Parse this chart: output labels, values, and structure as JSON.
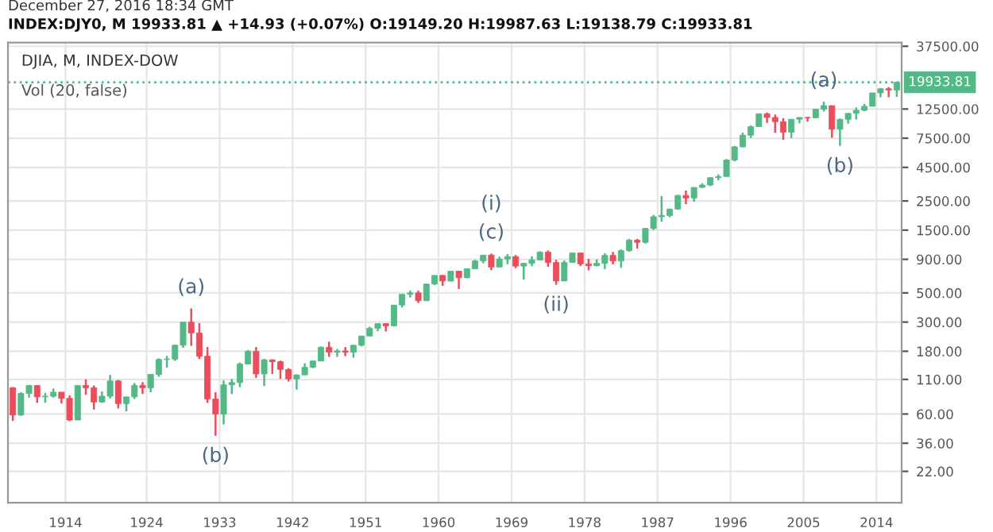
{
  "chart_data": {
    "type": "candlestick",
    "title": "DJIA, M, INDEX-DOW",
    "subtitle": "INDEX:DJY0, M 19933.81 ▲ +14.93 (+0.07%) O:19149.20 H:19987.63 L:19138.79 C:19933.81",
    "annotations": [
      "December 27, 2016 18:34 GMT",
      "Vol (20, false)",
      {
        "text": "(a)",
        "x": 1929.5,
        "y": 381
      },
      {
        "text": "(b)",
        "x": 1932.5,
        "y": 41
      },
      {
        "text": "(c)",
        "x": 1966.5,
        "y": 995
      },
      {
        "text": "(i)",
        "x": 1966.5,
        "y": 995
      },
      {
        "text": "(ii)",
        "x": 1974.5,
        "y": 577
      },
      {
        "text": "(a)",
        "x": 2007.5,
        "y": 14198
      },
      {
        "text": "(b)",
        "x": 2009.5,
        "y": 6547
      }
    ],
    "x": [
      1907.5,
      1908.5,
      1909.5,
      1910.5,
      1911.5,
      1912.5,
      1913.5,
      1914.5,
      1915.5,
      1916.5,
      1917.5,
      1918.5,
      1919.5,
      1920.5,
      1921.5,
      1922.5,
      1923.5,
      1924.5,
      1925.5,
      1926.5,
      1927.5,
      1928.5,
      1929.5,
      1930.5,
      1931.5,
      1932.5,
      1933.5,
      1934.5,
      1935.5,
      1936.5,
      1937.5,
      1938.5,
      1939.5,
      1940.5,
      1941.5,
      1942.5,
      1943.5,
      1944.5,
      1945.5,
      1946.5,
      1947.5,
      1948.5,
      1949.5,
      1950.5,
      1951.5,
      1952.5,
      1953.5,
      1954.5,
      1955.5,
      1956.5,
      1957.5,
      1958.5,
      1959.5,
      1960.5,
      1961.5,
      1962.5,
      1963.5,
      1964.5,
      1965.5,
      1966.5,
      1967.5,
      1968.5,
      1969.5,
      1970.5,
      1971.5,
      1972.5,
      1973.5,
      1974.5,
      1975.5,
      1976.5,
      1977.5,
      1978.5,
      1979.5,
      1980.5,
      1981.5,
      1982.5,
      1983.5,
      1984.5,
      1985.5,
      1986.5,
      1987.5,
      1988.5,
      1989.5,
      1990.5,
      1991.5,
      1992.5,
      1993.5,
      1994.5,
      1995.5,
      1996.5,
      1997.5,
      1998.5,
      1999.5,
      2000.5,
      2001.5,
      2002.5,
      2003.5,
      2004.5,
      2005.5,
      2006.5,
      2007.5,
      2008.5,
      2009.5,
      2010.5,
      2011.5,
      2012.5,
      2013.5,
      2014.5,
      2015.5,
      2016.5
    ],
    "ohlc": [
      [
        95,
        96,
        53,
        59
      ],
      [
        59,
        88,
        58,
        86
      ],
      [
        86,
        100,
        80,
        99
      ],
      [
        99,
        99,
        73,
        81
      ],
      [
        81,
        87,
        73,
        82
      ],
      [
        82,
        94,
        80,
        88
      ],
      [
        88,
        88,
        72,
        79
      ],
      [
        79,
        83,
        53,
        54
      ],
      [
        54,
        99,
        54,
        99
      ],
      [
        99,
        110,
        84,
        95
      ],
      [
        95,
        99,
        65,
        74
      ],
      [
        74,
        89,
        73,
        82
      ],
      [
        82,
        119,
        79,
        107
      ],
      [
        107,
        109,
        66,
        72
      ],
      [
        72,
        81,
        63,
        81
      ],
      [
        81,
        103,
        78,
        99
      ],
      [
        99,
        105,
        85,
        95
      ],
      [
        95,
        120,
        88,
        120
      ],
      [
        120,
        159,
        115,
        156
      ],
      [
        156,
        166,
        135,
        157
      ],
      [
        157,
        202,
        152,
        200
      ],
      [
        200,
        300,
        191,
        300
      ],
      [
        300,
        381,
        198,
        248
      ],
      [
        248,
        294,
        157,
        165
      ],
      [
        165,
        194,
        73,
        78
      ],
      [
        78,
        88,
        41,
        60
      ],
      [
        60,
        108,
        50,
        100
      ],
      [
        100,
        111,
        85,
        104
      ],
      [
        104,
        148,
        96,
        144
      ],
      [
        144,
        184,
        143,
        180
      ],
      [
        180,
        194,
        113,
        121
      ],
      [
        121,
        158,
        98,
        155
      ],
      [
        155,
        156,
        121,
        150
      ],
      [
        150,
        153,
        111,
        131
      ],
      [
        131,
        134,
        106,
        111
      ],
      [
        111,
        120,
        92,
        119
      ],
      [
        119,
        146,
        119,
        136
      ],
      [
        136,
        153,
        134,
        152
      ],
      [
        152,
        196,
        151,
        193
      ],
      [
        193,
        213,
        163,
        177
      ],
      [
        177,
        187,
        163,
        181
      ],
      [
        181,
        194,
        165,
        177
      ],
      [
        177,
        200,
        161,
        200
      ],
      [
        200,
        236,
        196,
        235
      ],
      [
        235,
        277,
        235,
        269
      ],
      [
        269,
        292,
        256,
        292
      ],
      [
        292,
        294,
        255,
        281
      ],
      [
        281,
        404,
        279,
        404
      ],
      [
        404,
        488,
        388,
        488
      ],
      [
        488,
        521,
        462,
        500
      ],
      [
        500,
        520,
        419,
        436
      ],
      [
        436,
        584,
        436,
        584
      ],
      [
        584,
        679,
        574,
        679
      ],
      [
        679,
        685,
        566,
        616
      ],
      [
        616,
        734,
        610,
        731
      ],
      [
        731,
        734,
        536,
        652
      ],
      [
        652,
        767,
        646,
        763
      ],
      [
        763,
        891,
        763,
        874
      ],
      [
        874,
        969,
        840,
        969
      ],
      [
        969,
        995,
        744,
        786
      ],
      [
        786,
        943,
        786,
        905
      ],
      [
        905,
        985,
        825,
        944
      ],
      [
        944,
        969,
        770,
        800
      ],
      [
        800,
        842,
        631,
        839
      ],
      [
        839,
        951,
        798,
        890
      ],
      [
        890,
        1036,
        889,
        1020
      ],
      [
        1020,
        1052,
        788,
        851
      ],
      [
        851,
        892,
        577,
        616
      ],
      [
        616,
        882,
        616,
        852
      ],
      [
        852,
        1015,
        852,
        1005
      ],
      [
        1005,
        1005,
        800,
        831
      ],
      [
        831,
        908,
        742,
        805
      ],
      [
        805,
        898,
        796,
        839
      ],
      [
        839,
        1000,
        759,
        964
      ],
      [
        964,
        1024,
        824,
        875
      ],
      [
        875,
        1071,
        777,
        1047
      ],
      [
        1047,
        1287,
        1027,
        1259
      ],
      [
        1259,
        1287,
        1087,
        1212
      ],
      [
        1212,
        1553,
        1185,
        1547
      ],
      [
        1547,
        1956,
        1502,
        1896
      ],
      [
        1896,
        2722,
        1738,
        1939
      ],
      [
        1939,
        2184,
        1879,
        2169
      ],
      [
        2169,
        2791,
        2145,
        2753
      ],
      [
        2753,
        3000,
        2365,
        2634
      ],
      [
        2634,
        3169,
        2470,
        3169
      ],
      [
        3169,
        3413,
        3137,
        3301
      ],
      [
        3301,
        3794,
        3242,
        3754
      ],
      [
        3754,
        3978,
        3593,
        3834
      ],
      [
        3834,
        5216,
        3832,
        5117
      ],
      [
        5117,
        6561,
        5000,
        6448
      ],
      [
        6448,
        8259,
        6391,
        7908
      ],
      [
        7908,
        9374,
        7539,
        9181
      ],
      [
        9181,
        11497,
        9120,
        11497
      ],
      [
        11497,
        11750,
        9796,
        10787
      ],
      [
        10787,
        11337,
        8236,
        10021
      ],
      [
        10021,
        10673,
        7286,
        8342
      ],
      [
        8342,
        10454,
        7524,
        10454
      ],
      [
        10454,
        10854,
        9750,
        10783
      ],
      [
        10783,
        10940,
        10012,
        10718
      ],
      [
        10718,
        12511,
        10668,
        12463
      ],
      [
        12463,
        14198,
        11939,
        13265
      ],
      [
        13265,
        13279,
        7552,
        8776
      ],
      [
        8776,
        10580,
        6547,
        10428
      ],
      [
        10428,
        11625,
        9686,
        11578
      ],
      [
        11578,
        12876,
        10405,
        12218
      ],
      [
        12218,
        13661,
        12035,
        13104
      ],
      [
        13104,
        16588,
        13104,
        16577
      ],
      [
        16577,
        18103,
        15340,
        17823
      ],
      [
        17823,
        18351,
        15370,
        17425
      ],
      [
        17425,
        19987,
        15450,
        19934
      ]
    ],
    "colors": [
      "#eb4d5c",
      "#53b987",
      "#53b987",
      "#eb4d5c",
      "#53b987",
      "#53b987",
      "#eb4d5c",
      "#eb4d5c",
      "#53b987",
      "#eb4d5c",
      "#eb4d5c",
      "#53b987",
      "#53b987",
      "#eb4d5c",
      "#53b987",
      "#53b987",
      "#eb4d5c",
      "#53b987",
      "#53b987",
      "#53b987",
      "#53b987",
      "#53b987",
      "#eb4d5c",
      "#eb4d5c",
      "#eb4d5c",
      "#eb4d5c",
      "#53b987",
      "#53b987",
      "#53b987",
      "#53b987",
      "#eb4d5c",
      "#53b987",
      "#eb4d5c",
      "#eb4d5c",
      "#eb4d5c",
      "#53b987",
      "#53b987",
      "#53b987",
      "#53b987",
      "#eb4d5c",
      "#53b987",
      "#eb4d5c",
      "#53b987",
      "#53b987",
      "#53b987",
      "#53b987",
      "#eb4d5c",
      "#53b987",
      "#53b987",
      "#53b987",
      "#eb4d5c",
      "#53b987",
      "#53b987",
      "#eb4d5c",
      "#53b987",
      "#eb4d5c",
      "#53b987",
      "#53b987",
      "#53b987",
      "#eb4d5c",
      "#53b987",
      "#53b987",
      "#eb4d5c",
      "#53b987",
      "#53b987",
      "#53b987",
      "#eb4d5c",
      "#eb4d5c",
      "#53b987",
      "#53b987",
      "#eb4d5c",
      "#eb4d5c",
      "#53b987",
      "#53b987",
      "#eb4d5c",
      "#53b987",
      "#53b987",
      "#eb4d5c",
      "#53b987",
      "#53b987",
      "#53b987",
      "#53b987",
      "#53b987",
      "#eb4d5c",
      "#53b987",
      "#53b987",
      "#53b987",
      "#53b987",
      "#53b987",
      "#53b987",
      "#53b987",
      "#53b987",
      "#53b987",
      "#eb4d5c",
      "#eb4d5c",
      "#eb4d5c",
      "#53b987",
      "#53b987",
      "#eb4d5c",
      "#53b987",
      "#53b987",
      "#eb4d5c",
      "#53b987",
      "#53b987",
      "#53b987",
      "#53b987",
      "#53b987",
      "#53b987",
      "#eb4d5c",
      "#53b987"
    ],
    "log": "y",
    "xlim": [
      1906.9,
      2017.1
    ],
    "xticks": [
      1914,
      1924,
      1933,
      1942,
      1951,
      1960,
      1969,
      1978,
      1987,
      1996,
      2005,
      2014
    ],
    "ylim": [
      12.7,
      40000
    ],
    "yticks": [
      {
        "value": 22,
        "label": "22.00"
      },
      {
        "value": 36,
        "label": "36.00"
      },
      {
        "value": 60,
        "label": "60.00"
      },
      {
        "value": 110,
        "label": "110.00"
      },
      {
        "value": 180,
        "label": "180.00"
      },
      {
        "value": 300,
        "label": "300.00"
      },
      {
        "value": 500,
        "label": "500.00"
      },
      {
        "value": 900,
        "label": "900.00"
      },
      {
        "value": 1500,
        "label": "1500.00"
      },
      {
        "value": 2500,
        "label": "2500.00"
      },
      {
        "value": 4500,
        "label": "4500.00"
      },
      {
        "value": 7500,
        "label": "7500.00"
      },
      {
        "value": 12500,
        "label": "12500.00"
      },
      {
        "value": 37500,
        "label": "37500.00"
      }
    ],
    "ref_lines": [
      {
        "axis": "y",
        "value": 19933.81,
        "label": "19933.81",
        "color": "#53b987",
        "line_style": "dotted"
      }
    ],
    "grid": true,
    "legend": false
  }
}
